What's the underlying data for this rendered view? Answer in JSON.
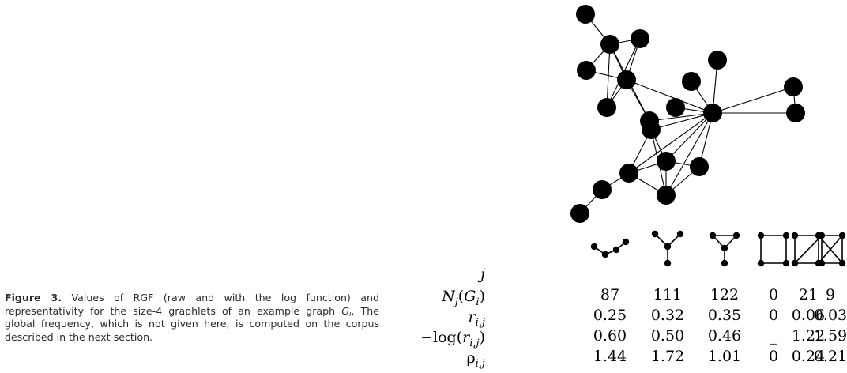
{
  "caption": {
    "label": "Figure 3.",
    "text_1": "Values of RGF (raw and with the log function) and representativity for the size-4 graphlets of an example graph ",
    "graph_symbol": "G",
    "graph_sub": "i",
    "text_2": ". The global frequency, which is not given here, is computed on the corpus described in the next section."
  },
  "table": {
    "row_labels": [
      "j",
      "N_j(G_i)",
      "r_{i,j}",
      "−log(r_{i,j})",
      "ρ_{i,j}"
    ],
    "graphlets": [
      "path",
      "star",
      "tailed-triangle",
      "cycle",
      "diamond",
      "clique"
    ],
    "rows": [
      [
        "87",
        "111",
        "122",
        "0",
        "21",
        "9"
      ],
      [
        "0.25",
        "0.32",
        "0.35",
        "0",
        "0.06",
        "0.03"
      ],
      [
        "0.60",
        "0.50",
        "0.46",
        "_",
        "1.22",
        "1.59"
      ],
      [
        "1.44",
        "1.72",
        "1.01",
        "0",
        "0.24",
        "0.21"
      ]
    ]
  }
}
